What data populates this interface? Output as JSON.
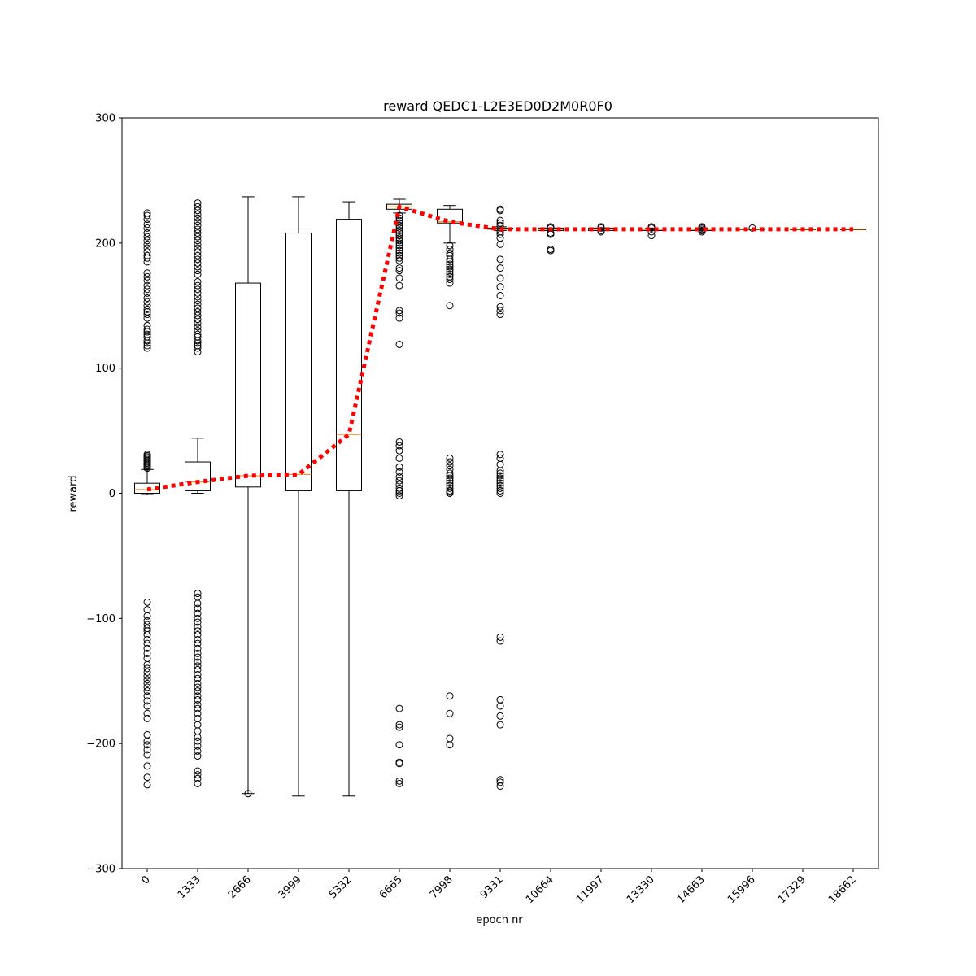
{
  "chart_data": {
    "type": "boxplot",
    "title": "reward QEDC1-L2E3ED0D2M0R0F0",
    "xlabel": "epoch nr",
    "ylabel": "reward",
    "ylim": [
      -300,
      300
    ],
    "yticks": [
      -300,
      -200,
      -100,
      0,
      100,
      200,
      300
    ],
    "categories": [
      "0",
      "1333",
      "2666",
      "3999",
      "5332",
      "6665",
      "7998",
      "9331",
      "10664",
      "11997",
      "13330",
      "14663",
      "15996",
      "17329",
      "18662"
    ],
    "boxes": [
      {
        "q1": 0,
        "median": 3,
        "q3": 8,
        "whisker_low": -1,
        "whisker_high": 19,
        "outliers": [
          20,
          21,
          22,
          23,
          24,
          25,
          26,
          27,
          28,
          29,
          30,
          31,
          116,
          118,
          120,
          122,
          125,
          127,
          129,
          131,
          134,
          140,
          143,
          145,
          147,
          150,
          153,
          156,
          160,
          163,
          166,
          170,
          173,
          176,
          185,
          188,
          190,
          193,
          196,
          199,
          202,
          205,
          208,
          212,
          215,
          219,
          222,
          224,
          -87,
          -93,
          -98,
          -102,
          -105,
          -108,
          -110,
          -113,
          -117,
          -120,
          -124,
          -128,
          -132,
          -137,
          -140,
          -143,
          -146,
          -149,
          -152,
          -155,
          -158,
          -162,
          -166,
          -170,
          -176,
          -180,
          -193,
          -198,
          -201,
          -205,
          -209,
          -218,
          -227,
          -233
        ]
      },
      {
        "q1": 2,
        "median": 9,
        "q3": 25,
        "whisker_low": 0,
        "whisker_high": 44,
        "outliers": [
          113,
          116,
          118,
          120,
          122,
          125,
          127,
          130,
          133,
          136,
          139,
          142,
          145,
          148,
          151,
          154,
          157,
          160,
          163,
          166,
          169,
          175,
          178,
          181,
          184,
          187,
          190,
          193,
          196,
          199,
          202,
          205,
          208,
          211,
          214,
          217,
          220,
          223,
          226,
          229,
          232,
          -80,
          -83,
          -88,
          -92,
          -96,
          -100,
          -103,
          -107,
          -110,
          -113,
          -117,
          -120,
          -124,
          -128,
          -131,
          -135,
          -138,
          -141,
          -145,
          -148,
          -152,
          -155,
          -158,
          -162,
          -165,
          -169,
          -172,
          -176,
          -180,
          -185,
          -190,
          -195,
          -198,
          -202,
          -206,
          -210,
          -222,
          -225,
          -228,
          -232
        ]
      },
      {
        "q1": 5,
        "median": 14,
        "q3": 168,
        "whisker_low": -240,
        "whisker_high": 237,
        "outliers": [
          -240
        ]
      },
      {
        "q1": 2,
        "median": 15,
        "q3": 208,
        "whisker_low": -242,
        "whisker_high": 237,
        "outliers": []
      },
      {
        "q1": 2,
        "median": 47,
        "q3": 219,
        "whisker_low": -242,
        "whisker_high": 233,
        "outliers": []
      },
      {
        "q1": 227,
        "median": 229,
        "q3": 231,
        "whisker_low": 224,
        "whisker_high": 235,
        "outliers": [
          222,
          220,
          218,
          216,
          214,
          212,
          210,
          208,
          206,
          204,
          202,
          200,
          198,
          196,
          194,
          192,
          190,
          188,
          186,
          180,
          178,
          172,
          166,
          146,
          144,
          140,
          119,
          41,
          38,
          34,
          28,
          21,
          17,
          13,
          10,
          7,
          4,
          2,
          0,
          -2,
          -172,
          -185,
          -187,
          -201,
          -215,
          -216,
          -230,
          -232
        ]
      },
      {
        "q1": 216,
        "median": 217,
        "q3": 227,
        "whisker_low": 200,
        "whisker_high": 230,
        "outliers": [
          198,
          195,
          192,
          190,
          187,
          185,
          183,
          181,
          179,
          177,
          175,
          173,
          171,
          168,
          150,
          28,
          25,
          22,
          19,
          16,
          14,
          12,
          10,
          8,
          6,
          4,
          2,
          1,
          0,
          -162,
          -176,
          -196,
          -201
        ]
      },
      {
        "q1": 211,
        "median": 211,
        "q3": 212,
        "whisker_low": 210,
        "whisker_high": 213,
        "outliers": [
          227,
          226,
          218,
          216,
          214,
          209,
          207,
          204,
          199,
          187,
          180,
          172,
          165,
          158,
          149,
          146,
          143,
          31,
          28,
          23,
          18,
          16,
          14,
          12,
          10,
          8,
          6,
          4,
          2,
          0,
          -115,
          -118,
          -165,
          -170,
          -178,
          -185,
          -229,
          -231,
          -234
        ]
      },
      {
        "q1": 210,
        "median": 211,
        "q3": 212,
        "whisker_low": 210,
        "whisker_high": 212,
        "outliers": [
          213,
          212,
          208,
          207,
          195,
          194
        ]
      },
      {
        "q1": 210,
        "median": 211,
        "q3": 212,
        "whisker_low": 210,
        "whisker_high": 212,
        "outliers": [
          213,
          212,
          210,
          209
        ]
      },
      {
        "q1": 210,
        "median": 211,
        "q3": 211,
        "whisker_low": 210,
        "whisker_high": 212,
        "outliers": [
          213,
          212,
          209,
          206
        ]
      },
      {
        "q1": 210,
        "median": 211,
        "q3": 211,
        "whisker_low": 210,
        "whisker_high": 212,
        "outliers": [
          213,
          212,
          211,
          210,
          209
        ]
      },
      {
        "q1": 211,
        "median": 211,
        "q3": 211,
        "whisker_low": 211,
        "whisker_high": 211,
        "outliers": [
          212
        ]
      },
      {
        "q1": 211,
        "median": 211,
        "q3": 211,
        "whisker_low": 211,
        "whisker_high": 211,
        "outliers": []
      },
      {
        "q1": 211,
        "median": 211,
        "q3": 211,
        "whisker_low": 211,
        "whisker_high": 211,
        "outliers": []
      }
    ],
    "mean_line": {
      "values": [
        3,
        9,
        14,
        15,
        47,
        229,
        217,
        211,
        211,
        211,
        211,
        211,
        211,
        211,
        211
      ],
      "style": "dotted",
      "color": "#ff0000"
    },
    "box_color": "#000000",
    "median_color": "#ff7f0e",
    "grid": false,
    "legend": "none"
  }
}
